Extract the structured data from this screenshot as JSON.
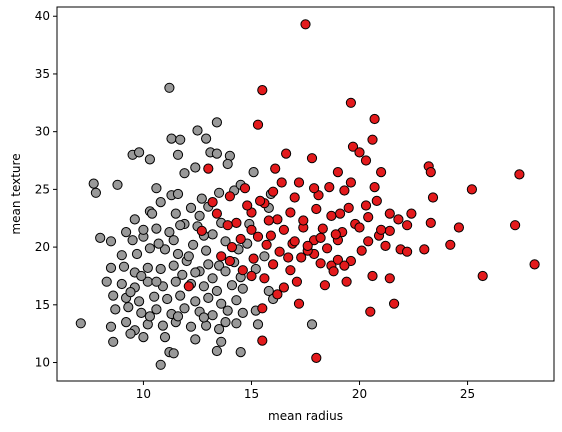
{
  "chart_data": {
    "type": "scatter",
    "title": "",
    "xlabel": "mean radius",
    "ylabel": "mean texture",
    "xlim": [
      6.0,
      29.0
    ],
    "ylim": [
      8.4,
      40.8
    ],
    "xticks": [
      10,
      15,
      20,
      25
    ],
    "yticks": [
      10,
      15,
      20,
      25,
      30,
      35,
      40
    ],
    "grid": false,
    "legend": "none",
    "colors": {
      "class_red": "#e31a1c",
      "class_gray": "#999999",
      "edge": "#000000"
    },
    "series": [
      {
        "color": "#e31a1c",
        "points": [
          [
            17.5,
            39.3
          ],
          [
            15.5,
            33.6
          ],
          [
            19.6,
            32.5
          ],
          [
            20.7,
            31.1
          ],
          [
            15.3,
            30.6
          ],
          [
            20.6,
            29.3
          ],
          [
            19.7,
            28.7
          ],
          [
            20.0,
            28.2
          ],
          [
            16.6,
            28.1
          ],
          [
            17.8,
            27.7
          ],
          [
            20.3,
            27.5
          ],
          [
            13.0,
            26.8
          ],
          [
            19.0,
            26.5
          ],
          [
            21.0,
            26.5
          ],
          [
            23.2,
            27.0
          ],
          [
            23.3,
            26.5
          ],
          [
            27.4,
            26.3
          ],
          [
            17.2,
            25.6
          ],
          [
            17.0,
            24.3
          ],
          [
            18.1,
            24.5
          ],
          [
            18.6,
            25.2
          ],
          [
            19.6,
            25.6
          ],
          [
            19.3,
            24.9
          ],
          [
            20.7,
            25.2
          ],
          [
            21.4,
            22.9
          ],
          [
            21.8,
            22.4
          ],
          [
            22.2,
            21.9
          ],
          [
            23.4,
            24.3
          ],
          [
            25.2,
            25.0
          ],
          [
            24.6,
            21.7
          ],
          [
            27.2,
            21.9
          ],
          [
            23.3,
            22.1
          ],
          [
            21.4,
            21.4
          ],
          [
            21.9,
            19.8
          ],
          [
            22.2,
            19.6
          ],
          [
            23.0,
            19.8
          ],
          [
            24.2,
            20.2
          ],
          [
            25.7,
            17.5
          ],
          [
            28.1,
            18.5
          ],
          [
            21.4,
            17.3
          ],
          [
            20.6,
            17.5
          ],
          [
            20.5,
            14.4
          ],
          [
            21.6,
            15.1
          ],
          [
            18.0,
            10.4
          ],
          [
            15.5,
            11.9
          ],
          [
            17.2,
            15.1
          ],
          [
            16.2,
            15.9
          ],
          [
            15.5,
            14.7
          ],
          [
            18.4,
            16.7
          ],
          [
            18.7,
            18.4
          ],
          [
            19.0,
            18.9
          ],
          [
            19.6,
            18.8
          ],
          [
            20.1,
            19.7
          ],
          [
            20.4,
            20.5
          ],
          [
            19.0,
            20.6
          ],
          [
            18.3,
            21.6
          ],
          [
            17.9,
            20.6
          ],
          [
            17.4,
            21.7
          ],
          [
            16.9,
            20.3
          ],
          [
            16.3,
            19.6
          ],
          [
            15.7,
            20.2
          ],
          [
            15.1,
            19.0
          ],
          [
            14.6,
            18.0
          ],
          [
            15.0,
            17.5
          ],
          [
            15.6,
            17.3
          ],
          [
            16.0,
            18.5
          ],
          [
            16.8,
            18.0
          ],
          [
            17.3,
            19.1
          ],
          [
            17.9,
            19.4
          ],
          [
            18.5,
            19.9
          ],
          [
            19.2,
            21.3
          ],
          [
            19.8,
            22.0
          ],
          [
            20.3,
            23.6
          ],
          [
            19.5,
            23.4
          ],
          [
            18.7,
            22.7
          ],
          [
            18.0,
            23.3
          ],
          [
            17.4,
            22.3
          ],
          [
            16.8,
            23.0
          ],
          [
            16.2,
            22.4
          ],
          [
            15.6,
            23.8
          ],
          [
            15.0,
            23.0
          ],
          [
            14.3,
            22.1
          ],
          [
            14.0,
            24.4
          ],
          [
            14.7,
            25.1
          ],
          [
            15.4,
            24.0
          ],
          [
            16.0,
            24.8
          ],
          [
            15.0,
            21.5
          ],
          [
            14.5,
            20.7
          ],
          [
            13.9,
            21.9
          ],
          [
            13.4,
            22.9
          ],
          [
            14.1,
            20.0
          ],
          [
            15.9,
            21.0
          ],
          [
            16.5,
            21.5
          ],
          [
            17.0,
            20.5
          ],
          [
            17.6,
            19.7
          ],
          [
            18.2,
            18.6
          ],
          [
            18.8,
            17.9
          ],
          [
            19.4,
            17.0
          ],
          [
            16.5,
            16.5
          ],
          [
            17.1,
            17.0
          ],
          [
            13.6,
            19.2
          ],
          [
            12.7,
            21.4
          ],
          [
            13.2,
            23.9
          ],
          [
            14.0,
            18.8
          ],
          [
            20.9,
            21.0
          ],
          [
            21.2,
            20.1
          ],
          [
            20.0,
            21.7
          ],
          [
            22.4,
            22.9
          ],
          [
            20.8,
            24.0
          ],
          [
            19.1,
            22.9
          ],
          [
            17.9,
            25.1
          ],
          [
            16.4,
            25.6
          ],
          [
            18.2,
            20.8
          ],
          [
            18.9,
            21.1
          ],
          [
            17.6,
            20.1
          ],
          [
            16.7,
            19.1
          ],
          [
            15.8,
            22.3
          ],
          [
            14.8,
            23.6
          ],
          [
            16.1,
            26.8
          ],
          [
            15.3,
            20.9
          ],
          [
            20.4,
            22.6
          ],
          [
            21.0,
            21.5
          ],
          [
            19.3,
            18.4
          ],
          [
            12.1,
            16.6
          ]
        ]
      },
      {
        "color": "#999999",
        "points": [
          [
            11.2,
            33.8
          ],
          [
            13.4,
            30.8
          ],
          [
            12.5,
            30.1
          ],
          [
            11.3,
            29.4
          ],
          [
            11.7,
            29.3
          ],
          [
            12.9,
            29.4
          ],
          [
            13.1,
            28.2
          ],
          [
            9.5,
            28.0
          ],
          [
            9.8,
            28.2
          ],
          [
            10.3,
            27.6
          ],
          [
            11.6,
            28.0
          ],
          [
            13.4,
            28.1
          ],
          [
            14.0,
            27.9
          ],
          [
            13.9,
            27.2
          ],
          [
            12.4,
            26.9
          ],
          [
            11.9,
            26.4
          ],
          [
            7.7,
            25.5
          ],
          [
            7.8,
            24.7
          ],
          [
            8.8,
            25.4
          ],
          [
            10.6,
            25.1
          ],
          [
            11.3,
            24.5
          ],
          [
            11.6,
            24.6
          ],
          [
            12.7,
            24.2
          ],
          [
            13.5,
            24.7
          ],
          [
            14.2,
            24.9
          ],
          [
            14.5,
            25.4
          ],
          [
            13.0,
            23.5
          ],
          [
            12.2,
            23.4
          ],
          [
            11.5,
            22.9
          ],
          [
            10.8,
            23.9
          ],
          [
            10.3,
            23.1
          ],
          [
            9.6,
            22.4
          ],
          [
            9.2,
            21.3
          ],
          [
            9.5,
            20.6
          ],
          [
            10.0,
            20.9
          ],
          [
            10.6,
            21.6
          ],
          [
            11.2,
            21.3
          ],
          [
            11.9,
            22.0
          ],
          [
            12.5,
            21.8
          ],
          [
            13.2,
            21.1
          ],
          [
            13.8,
            20.5
          ],
          [
            14.4,
            19.8
          ],
          [
            14.8,
            20.3
          ],
          [
            8.5,
            20.5
          ],
          [
            8.0,
            20.8
          ],
          [
            9.0,
            19.3
          ],
          [
            9.7,
            19.4
          ],
          [
            10.3,
            19.9
          ],
          [
            11.0,
            19.8
          ],
          [
            11.6,
            19.4
          ],
          [
            12.3,
            20.2
          ],
          [
            12.9,
            19.7
          ],
          [
            13.5,
            18.4
          ],
          [
            14.2,
            18.7
          ],
          [
            8.5,
            18.2
          ],
          [
            9.1,
            18.3
          ],
          [
            9.6,
            17.8
          ],
          [
            10.2,
            18.2
          ],
          [
            10.8,
            18.1
          ],
          [
            11.4,
            18.4
          ],
          [
            12.0,
            18.8
          ],
          [
            12.6,
            17.9
          ],
          [
            13.2,
            17.3
          ],
          [
            13.8,
            17.9
          ],
          [
            14.5,
            17.4
          ],
          [
            8.3,
            17.0
          ],
          [
            9.0,
            16.8
          ],
          [
            9.6,
            16.5
          ],
          [
            10.2,
            17.0
          ],
          [
            10.9,
            16.6
          ],
          [
            11.5,
            17.0
          ],
          [
            12.2,
            16.8
          ],
          [
            12.8,
            16.6
          ],
          [
            13.4,
            16.2
          ],
          [
            14.1,
            16.7
          ],
          [
            14.6,
            16.4
          ],
          [
            8.6,
            15.8
          ],
          [
            9.2,
            15.6
          ],
          [
            9.8,
            15.3
          ],
          [
            10.5,
            15.7
          ],
          [
            11.1,
            15.5
          ],
          [
            11.7,
            15.8
          ],
          [
            12.4,
            15.3
          ],
          [
            13.0,
            15.6
          ],
          [
            13.6,
            15.1
          ],
          [
            14.3,
            15.4
          ],
          [
            8.7,
            14.6
          ],
          [
            9.3,
            14.8
          ],
          [
            9.9,
            14.3
          ],
          [
            10.6,
            14.6
          ],
          [
            11.3,
            14.2
          ],
          [
            11.9,
            14.7
          ],
          [
            12.6,
            14.4
          ],
          [
            13.2,
            14.1
          ],
          [
            13.9,
            14.5
          ],
          [
            14.6,
            14.3
          ],
          [
            7.1,
            13.4
          ],
          [
            8.5,
            13.1
          ],
          [
            9.2,
            13.5
          ],
          [
            9.6,
            12.8
          ],
          [
            10.2,
            13.3
          ],
          [
            10.9,
            13.2
          ],
          [
            11.5,
            13.5
          ],
          [
            12.2,
            13.1
          ],
          [
            12.9,
            13.2
          ],
          [
            13.5,
            12.9
          ],
          [
            14.3,
            13.4
          ],
          [
            8.6,
            11.8
          ],
          [
            9.4,
            12.5
          ],
          [
            10.0,
            12.2
          ],
          [
            11.0,
            12.2
          ],
          [
            12.4,
            12.0
          ],
          [
            13.6,
            11.8
          ],
          [
            15.3,
            13.3
          ],
          [
            11.2,
            10.9
          ],
          [
            11.4,
            10.8
          ],
          [
            13.4,
            11.0
          ],
          [
            14.5,
            10.9
          ],
          [
            10.8,
            9.8
          ],
          [
            15.2,
            14.5
          ],
          [
            15.8,
            16.2
          ],
          [
            16.0,
            15.5
          ],
          [
            17.8,
            13.3
          ],
          [
            15.6,
            19.2
          ],
          [
            15.9,
            24.6
          ],
          [
            15.1,
            26.5
          ],
          [
            15.8,
            23.4
          ],
          [
            14.9,
            22.0
          ],
          [
            15.2,
            18.1
          ],
          [
            10.0,
            21.5
          ],
          [
            10.4,
            22.9
          ],
          [
            11.4,
            20.6
          ],
          [
            12.8,
            21.0
          ],
          [
            12.1,
            19.2
          ],
          [
            11.8,
            17.6
          ],
          [
            10.6,
            17.0
          ],
          [
            9.4,
            16.1
          ],
          [
            10.3,
            14.0
          ],
          [
            11.6,
            14.0
          ],
          [
            12.8,
            13.9
          ],
          [
            13.8,
            13.5
          ],
          [
            12.4,
            17.8
          ],
          [
            13.0,
            18.5
          ],
          [
            9.9,
            17.5
          ],
          [
            10.7,
            20.3
          ],
          [
            11.7,
            21.9
          ],
          [
            12.6,
            22.7
          ],
          [
            13.6,
            22.1
          ]
        ]
      }
    ]
  }
}
